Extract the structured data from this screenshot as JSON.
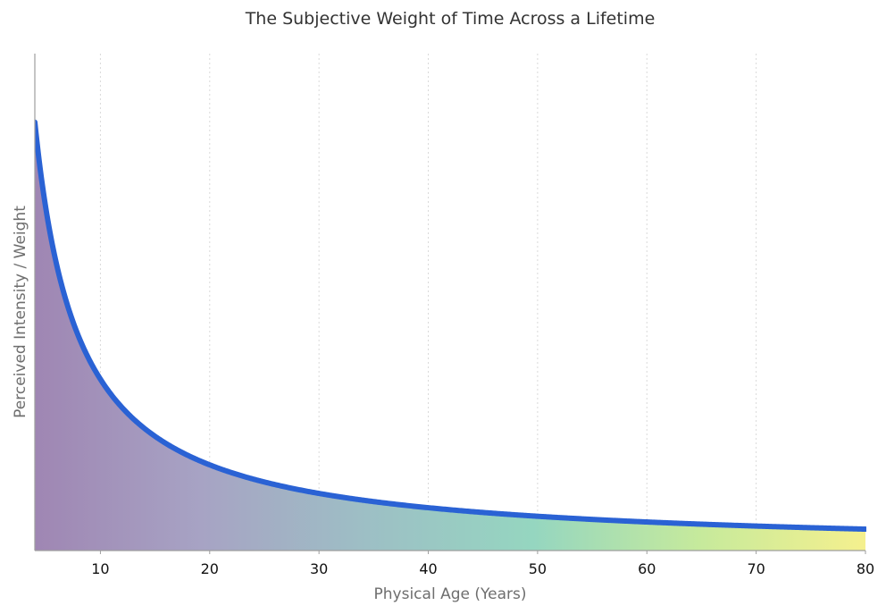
{
  "chart_data": {
    "type": "area",
    "title": "The Subjective Weight of Time Across a Lifetime",
    "xlabel": "Physical Age (Years)",
    "ylabel": "Perceived Intensity / Weight",
    "xlim": [
      4,
      80
    ],
    "ylim": [
      0,
      0.29
    ],
    "x_ticks": [
      10,
      20,
      30,
      40,
      50,
      60,
      70,
      80
    ],
    "grid": "vertical dotted",
    "series": [
      {
        "name": "Perceived Intensity",
        "function": "1/x",
        "x": [
          4,
          5,
          6,
          7,
          8,
          9,
          10,
          12,
          14,
          16,
          18,
          20,
          25,
          30,
          35,
          40,
          45,
          50,
          55,
          60,
          65,
          70,
          75,
          80
        ],
        "values": [
          0.25,
          0.2,
          0.1667,
          0.1429,
          0.125,
          0.1111,
          0.1,
          0.0833,
          0.0714,
          0.0625,
          0.0556,
          0.05,
          0.04,
          0.0333,
          0.0286,
          0.025,
          0.0222,
          0.02,
          0.0182,
          0.0167,
          0.0154,
          0.0143,
          0.0133,
          0.0125
        ],
        "line_color": "#2a62d4",
        "fill_gradient": [
          "#9f86b3",
          "#a7a3c4",
          "#9dbfc5",
          "#95d6c0",
          "#c6ea9c",
          "#f5f08e"
        ]
      }
    ]
  }
}
